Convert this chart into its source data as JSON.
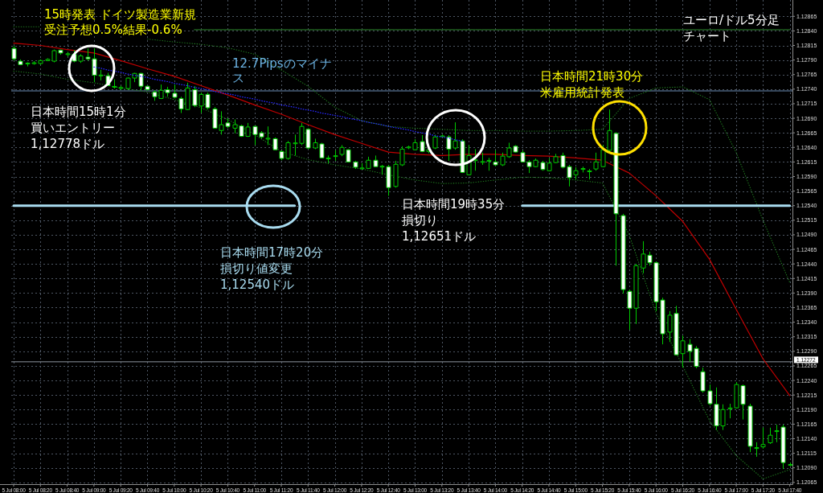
{
  "chart_data": {
    "type": "candlestick",
    "title": "ユーロ/ドル5分足チャート",
    "categories": [
      "5 Jul 08:00",
      null,
      null,
      null,
      "5 Jul 08:20",
      null,
      null,
      null,
      "5 Jul 08:40",
      null,
      null,
      null,
      "5 Jul 09:00",
      null,
      null,
      null,
      "5 Jul 09:20",
      null,
      null,
      null,
      "5 Jul 09:40",
      null,
      null,
      null,
      "5 Jul 10:00",
      null,
      null,
      null,
      "5 Jul 10:20",
      null,
      null,
      null,
      "5 Jul 10:40",
      null,
      null,
      null,
      "5 Jul 11:00",
      null,
      null,
      null,
      "5 Jul 11:20",
      null,
      null,
      null,
      "5 Jul 11:40",
      null,
      null,
      null,
      "5 Jul 12:00",
      null,
      null,
      null,
      "5 Jul 12:20",
      null,
      null,
      null,
      "5 Jul 12:40",
      null,
      null,
      null,
      "5 Jul 13:00",
      null,
      null,
      null,
      "5 Jul 13:20",
      null,
      null,
      null,
      "5 Jul 13:40",
      null,
      null,
      null,
      "5 Jul 14:00",
      null,
      null,
      null,
      "5 Jul 14:20",
      null,
      null,
      null,
      "5 Jul 14:40",
      null,
      null,
      null,
      "5 Jul 15:00",
      null,
      null,
      null,
      "5 Jul 15:20",
      null,
      null,
      null,
      "5 Jul 15:40",
      null,
      null,
      null,
      "5 Jul 16:00",
      null,
      null,
      null,
      "5 Jul 16:20",
      null,
      null,
      null,
      "5 Jul 16:40",
      null,
      null,
      null,
      "5 Jul 17:00",
      null,
      null,
      null,
      "5 Jul 17:20",
      null,
      null,
      null,
      "5 Jul 17:40"
    ],
    "ohlc": [
      [
        1.1281,
        1.12814,
        1.12789,
        1.12792
      ],
      [
        1.12788,
        1.12791,
        1.12781,
        1.12782
      ],
      [
        1.12784,
        1.12786,
        1.12779,
        1.12784
      ],
      [
        1.12784,
        1.12788,
        1.12782,
        1.12785
      ],
      [
        1.12784,
        1.12791,
        1.12782,
        1.12789
      ],
      [
        1.12789,
        1.12793,
        1.12788,
        1.12791
      ],
      [
        1.12788,
        1.12808,
        1.12786,
        1.12806
      ],
      [
        1.12807,
        1.12808,
        1.12799,
        1.12802
      ],
      [
        1.128,
        1.12804,
        1.12796,
        1.128
      ],
      [
        1.128,
        1.12807,
        1.12786,
        1.12788
      ],
      [
        1.12788,
        1.128,
        1.12785,
        1.12797
      ],
      [
        1.12795,
        1.1281,
        1.12789,
        1.12792
      ],
      [
        1.12792,
        1.1281,
        1.12752,
        1.12764
      ],
      [
        1.12763,
        1.12773,
        1.12755,
        1.12764
      ],
      [
        1.12763,
        1.12768,
        1.12745,
        1.12746
      ],
      [
        1.12744,
        1.12757,
        1.12741,
        1.12744
      ],
      [
        1.12742,
        1.12746,
        1.12739,
        1.12742
      ],
      [
        1.12741,
        1.1276,
        1.12739,
        1.12759
      ],
      [
        1.12759,
        1.12768,
        1.12752,
        1.12767
      ],
      [
        1.12767,
        1.12768,
        1.12738,
        1.12745
      ],
      [
        1.12745,
        1.12746,
        1.12738,
        1.12739
      ],
      [
        1.12735,
        1.12738,
        1.1272,
        1.12727
      ],
      [
        1.12724,
        1.12748,
        1.12723,
        1.12738
      ],
      [
        1.12739,
        1.12744,
        1.12727,
        1.12734
      ],
      [
        1.12733,
        1.12748,
        1.12724,
        1.12726
      ],
      [
        1.12724,
        1.12727,
        1.12699,
        1.12706
      ],
      [
        1.12705,
        1.12751,
        1.12704,
        1.12742
      ],
      [
        1.12739,
        1.12745,
        1.12709,
        1.12712
      ],
      [
        1.12711,
        1.12734,
        1.12699,
        1.12731
      ],
      [
        1.12731,
        1.12734,
        1.12705,
        1.12708
      ],
      [
        1.12706,
        1.12709,
        1.12672,
        1.12673
      ],
      [
        1.12669,
        1.12702,
        1.12662,
        1.12679
      ],
      [
        1.12682,
        1.1269,
        1.12673,
        1.12676
      ],
      [
        1.12673,
        1.12688,
        1.12664,
        1.12679
      ],
      [
        1.12677,
        1.12679,
        1.12658,
        1.12659
      ],
      [
        1.12659,
        1.12682,
        1.12658,
        1.12675
      ],
      [
        1.12676,
        1.12677,
        1.12644,
        1.12662
      ],
      [
        1.12665,
        1.12668,
        1.12655,
        1.12658
      ],
      [
        1.12655,
        1.12676,
        1.12644,
        1.12655
      ],
      [
        1.12655,
        1.12657,
        1.12635,
        1.12636
      ],
      [
        1.12633,
        1.12635,
        1.12618,
        1.12621
      ],
      [
        1.12621,
        1.12651,
        1.12619,
        1.12648
      ],
      [
        1.12647,
        1.12662,
        1.12626,
        1.12647
      ],
      [
        1.12647,
        1.12682,
        1.12644,
        1.12676
      ],
      [
        1.12671,
        1.12673,
        1.12637,
        1.12639
      ],
      [
        1.12639,
        1.12655,
        1.12637,
        1.12648
      ],
      [
        1.12646,
        1.12648,
        1.12621,
        1.12622
      ],
      [
        1.12621,
        1.12626,
        1.12613,
        1.12621
      ],
      [
        1.12625,
        1.12635,
        1.12617,
        1.12625
      ],
      [
        1.12628,
        1.12644,
        1.12625,
        1.1264
      ],
      [
        1.12636,
        1.12637,
        1.12614,
        1.12615
      ],
      [
        1.12615,
        1.12617,
        1.12603,
        1.12606
      ],
      [
        1.12604,
        1.12613,
        1.12602,
        1.12604
      ],
      [
        1.12604,
        1.12624,
        1.12603,
        1.12618
      ],
      [
        1.12618,
        1.12626,
        1.12606,
        1.12607
      ],
      [
        1.12607,
        1.1261,
        1.12593,
        1.12607
      ],
      [
        1.12607,
        1.1261,
        1.12557,
        1.12571
      ],
      [
        1.12573,
        1.12617,
        1.12571,
        1.12611
      ],
      [
        1.1261,
        1.12642,
        1.12608,
        1.12637
      ],
      [
        1.1264,
        1.12643,
        1.12637,
        1.1264
      ],
      [
        1.12636,
        1.12654,
        1.12635,
        1.12648
      ],
      [
        1.1265,
        1.12661,
        1.12632,
        1.12633
      ],
      [
        1.12633,
        1.12637,
        1.1263,
        1.12636
      ],
      [
        1.12639,
        1.12662,
        1.12637,
        1.12658
      ],
      [
        1.12659,
        1.12662,
        1.12657,
        1.12659
      ],
      [
        1.12658,
        1.12661,
        1.12617,
        1.12637
      ],
      [
        1.12639,
        1.12683,
        1.12636,
        1.12651
      ],
      [
        1.12651,
        1.12654,
        1.12596,
        1.12597
      ],
      [
        1.12593,
        1.12644,
        1.12592,
        1.12626
      ],
      [
        1.12618,
        1.12637,
        1.126,
        1.12618
      ],
      [
        1.12615,
        1.12631,
        1.1261,
        1.12615
      ],
      [
        1.12617,
        1.12622,
        1.126,
        1.12617
      ],
      [
        1.12615,
        1.12635,
        1.12608,
        1.1261
      ],
      [
        1.1261,
        1.12631,
        1.12608,
        1.12625
      ],
      [
        1.12624,
        1.12648,
        1.12622,
        1.12639
      ],
      [
        1.12642,
        1.12644,
        1.12631,
        1.12632
      ],
      [
        1.12631,
        1.12635,
        1.12614,
        1.12615
      ],
      [
        1.12615,
        1.12618,
        1.12596,
        1.12607
      ],
      [
        1.12607,
        1.12621,
        1.12606,
        1.12618
      ],
      [
        1.12614,
        1.12617,
        1.126,
        1.12602
      ],
      [
        1.126,
        1.12621,
        1.12599,
        1.12613
      ],
      [
        1.12614,
        1.12629,
        1.12613,
        1.12624
      ],
      [
        1.12626,
        1.12631,
        1.12604,
        1.12606
      ],
      [
        1.12607,
        1.1261,
        1.12573,
        1.12588
      ],
      [
        1.12593,
        1.12606,
        1.12585,
        1.126
      ],
      [
        1.12603,
        1.12607,
        1.12597,
        1.12603
      ],
      [
        1.12599,
        1.12603,
        1.12585,
        1.12599
      ],
      [
        1.12603,
        1.12631,
        1.126,
        1.12615
      ],
      [
        1.12607,
        1.12644,
        1.12606,
        1.12636
      ],
      [
        1.12635,
        1.12705,
        1.12633,
        1.12669
      ],
      [
        1.12664,
        1.12666,
        1.12437,
        1.12526
      ],
      [
        1.12523,
        1.12526,
        1.12389,
        1.12396
      ],
      [
        1.12393,
        1.12396,
        1.12327,
        1.12364
      ],
      [
        1.12364,
        1.1244,
        1.12337,
        1.12437
      ],
      [
        1.12433,
        1.12479,
        1.12424,
        1.12457
      ],
      [
        1.12455,
        1.12461,
        1.12437,
        1.12442
      ],
      [
        1.12442,
        1.12444,
        1.12359,
        1.12375
      ],
      [
        1.12378,
        1.12382,
        1.12302,
        1.1232
      ],
      [
        1.12323,
        1.12359,
        1.12306,
        1.12352
      ],
      [
        1.12355,
        1.12368,
        1.12283,
        1.12284
      ],
      [
        1.12286,
        1.12317,
        1.12262,
        1.12308
      ],
      [
        1.12302,
        1.12311,
        1.12272,
        1.1229
      ],
      [
        1.12295,
        1.12299,
        1.12261,
        1.12264
      ],
      [
        1.12255,
        1.12262,
        1.12219,
        1.12222
      ],
      [
        1.12222,
        1.12233,
        1.12197,
        1.122
      ],
      [
        1.12199,
        1.12228,
        1.12155,
        1.12162
      ],
      [
        1.12162,
        1.12199,
        1.12155,
        1.1219
      ],
      [
        1.12192,
        1.122,
        1.12175,
        1.12192
      ],
      [
        1.12193,
        1.12237,
        1.12192,
        1.12233
      ],
      [
        1.12231,
        1.12233,
        1.12173,
        1.12199
      ],
      [
        1.12196,
        1.122,
        1.12117,
        1.12127
      ],
      [
        1.12124,
        1.12134,
        1.12109,
        1.12124
      ],
      [
        1.12126,
        1.12159,
        1.12123,
        1.1213
      ],
      [
        1.12133,
        1.12159,
        1.12131,
        1.12146
      ],
      [
        1.12153,
        1.12164,
        1.12134,
        1.12153
      ],
      [
        1.1216,
        1.12164,
        1.12088,
        1.12099
      ],
      [
        1.12095,
        1.12099,
        1.12093,
        1.12095
      ]
    ],
    "color": "#00c800",
    "colors": [
      "#ffffff",
      "#ffffff",
      "#000000",
      "#000000",
      "#000000",
      "#000000",
      "#000000",
      "#ffffff",
      "#000000",
      "#ffffff",
      "#000000",
      "#ffffff",
      "#ffffff",
      "#000000",
      "#ffffff",
      "#000000",
      "#000000",
      "#000000",
      "#000000",
      "#ffffff",
      "#ffffff",
      "#ffffff",
      "#000000",
      "#ffffff",
      "#ffffff",
      "#ffffff",
      "#000000",
      "#ffffff",
      "#000000",
      "#ffffff",
      "#ffffff",
      "#000000",
      "#ffffff",
      "#000000",
      "#ffffff",
      "#000000",
      "#ffffff",
      "#ffffff",
      "#000000",
      "#ffffff",
      "#ffffff",
      "#000000",
      "#000000",
      "#000000",
      "#ffffff",
      "#000000",
      "#ffffff",
      "#000000",
      "#000000",
      "#000000",
      "#ffffff",
      "#ffffff",
      "#000000",
      "#000000",
      "#ffffff",
      "#000000",
      "#ffffff",
      "#000000",
      "#000000",
      "#000000",
      "#000000",
      "#ffffff",
      "#000000",
      "#000000",
      "#000000",
      "#ffffff",
      "#000000",
      "#ffffff",
      "#000000",
      "#000000",
      "#000000",
      "#000000",
      "#ffffff",
      "#000000",
      "#000000",
      "#ffffff",
      "#ffffff",
      "#ffffff",
      "#000000",
      "#ffffff",
      "#000000",
      "#000000",
      "#ffffff",
      "#ffffff",
      "#000000",
      "#000000",
      "#000000",
      "#000000",
      "#000000",
      "#000000",
      "#ffffff",
      "#ffffff",
      "#ffffff",
      "#000000",
      "#000000",
      "#ffffff",
      "#ffffff",
      "#ffffff",
      "#000000",
      "#ffffff",
      "#000000",
      "#ffffff",
      "#ffffff",
      "#ffffff",
      "#ffffff",
      "#ffffff",
      "#000000",
      "#000000",
      "#000000",
      "#ffffff",
      "#ffffff",
      "#000000",
      "#000000",
      "#000000",
      "#000000",
      "#ffffff",
      "#000000"
    ],
    "series": [
      {
        "type": "line",
        "color": "#c00000",
        "line_style": "solid",
        "x": [
          "5 Jul 08:00",
          "5 Jul 08:20",
          "5 Jul 08:40",
          "5 Jul 09:00",
          "5 Jul 09:20",
          "5 Jul 09:40",
          "5 Jul 10:00",
          "5 Jul 10:20",
          "5 Jul 10:40",
          "5 Jul 11:00",
          "5 Jul 11:20",
          "5 Jul 11:40",
          "5 Jul 12:00",
          "5 Jul 12:20",
          "5 Jul 12:40",
          "5 Jul 13:00",
          "5 Jul 13:20",
          "5 Jul 13:40",
          "5 Jul 14:00",
          "5 Jul 14:20",
          "5 Jul 14:40",
          "5 Jul 15:00",
          "5 Jul 15:20",
          "5 Jul 15:40",
          "5 Jul 16:00",
          "5 Jul 16:20",
          "5 Jul 16:40",
          "5 Jul 17:00",
          "5 Jul 17:20",
          "5 Jul 17:40"
        ],
        "values": [
          1.12819,
          1.12815,
          1.12808,
          1.12802,
          1.12789,
          1.12775,
          1.12762,
          1.12746,
          1.1273,
          1.12713,
          1.12697,
          1.12679,
          1.12662,
          1.12647,
          1.12632,
          1.12628,
          1.12626,
          1.12628,
          1.12628,
          1.12626,
          1.12625,
          1.12622,
          1.12618,
          1.12596,
          1.12557,
          1.12513,
          1.12448,
          1.12362,
          1.12277,
          1.12214
        ]
      },
      {
        "type": "line",
        "color": "#2828ff",
        "line_style": "dotted",
        "values": [
          null,
          null,
          null,
          null,
          null,
          null,
          null,
          null,
          null,
          null,
          null,
          null,
          1.12778,
          1.12776,
          1.12773,
          1.12771,
          1.12769,
          1.12766,
          1.12764,
          1.12762,
          1.1276,
          1.12757,
          1.12755,
          1.12753,
          1.1275,
          1.12748,
          1.12746,
          1.12743,
          1.12741,
          1.12739,
          1.12736,
          1.12734,
          1.12732,
          1.1273,
          1.12727,
          1.12725,
          1.12723,
          1.1272,
          1.12718,
          1.12716,
          1.12713,
          1.12711,
          1.12709,
          1.12706,
          1.12704,
          1.12702,
          1.12699,
          1.12697,
          1.12695,
          1.12693,
          1.1269,
          1.12688,
          1.12686,
          1.12683,
          1.12681,
          1.12679,
          1.12676,
          1.12674,
          1.12672,
          1.1267,
          1.12667,
          1.12665,
          1.12663,
          1.1266,
          1.12658,
          1.12656,
          1.12653,
          1.12651,
          null,
          null,
          null,
          null,
          null,
          null,
          null,
          null,
          null,
          null,
          null,
          null,
          null,
          null,
          null,
          null,
          null,
          null,
          null,
          null,
          null,
          null,
          null,
          null,
          null,
          null,
          null,
          null,
          null,
          null,
          null,
          null,
          null,
          null,
          null,
          null,
          null,
          null,
          null,
          null,
          null,
          null,
          null,
          null,
          null,
          null,
          null,
          null,
          null
        ]
      },
      {
        "type": "line",
        "color": "#1f7a1f",
        "line_style": "dotted",
        "x": [
          "5 Jul 08:00",
          "5 Jul 08:20",
          "5 Jul 08:40",
          "5 Jul 09:00",
          "5 Jul 09:20",
          "5 Jul 09:40",
          "5 Jul 10:00",
          "5 Jul 10:20",
          "5 Jul 10:40",
          "5 Jul 11:00",
          "5 Jul 11:20",
          "5 Jul 11:40",
          "5 Jul 12:00",
          "5 Jul 12:20",
          "5 Jul 12:40",
          "5 Jul 13:00",
          "5 Jul 13:20",
          "5 Jul 13:40",
          "5 Jul 14:00",
          "5 Jul 14:20",
          "5 Jul 14:40",
          "5 Jul 15:00",
          "5 Jul 15:20",
          "5 Jul 15:40",
          "5 Jul 16:00",
          "5 Jul 16:20",
          "5 Jul 16:40",
          "5 Jul 17:00",
          "5 Jul 17:20",
          "5 Jul 17:40"
        ],
        "values": [
          1.12847,
          1.12847,
          null,
          null,
          null,
          1.12826,
          1.12821,
          1.12817,
          1.12811,
          1.128,
          1.12773,
          1.12745,
          1.12709,
          1.12686,
          1.12676,
          1.12673,
          1.12671,
          1.12669,
          1.12669,
          1.12668,
          1.12668,
          1.12669,
          1.12671,
          1.12724,
          1.12742,
          1.12744,
          1.12722,
          1.12631,
          1.12515,
          1.12408
        ]
      },
      {
        "type": "line",
        "color": "#1f7a1f",
        "line_style": "dotted",
        "x": [
          "5 Jul 08:00",
          "5 Jul 08:20",
          "5 Jul 08:40",
          "5 Jul 09:00",
          "5 Jul 09:20",
          "5 Jul 09:40",
          "5 Jul 10:00",
          "5 Jul 10:20",
          "5 Jul 10:40",
          "5 Jul 11:00",
          "5 Jul 11:20",
          "5 Jul 11:40",
          "5 Jul 12:00",
          "5 Jul 12:20",
          "5 Jul 12:40",
          "5 Jul 13:00",
          "5 Jul 13:20",
          "5 Jul 13:40",
          "5 Jul 14:00",
          "5 Jul 14:20",
          "5 Jul 14:40",
          "5 Jul 15:00",
          "5 Jul 15:20",
          "5 Jul 15:40",
          "5 Jul 16:00",
          "5 Jul 16:20",
          "5 Jul 16:40",
          "5 Jul 17:00",
          "5 Jul 17:20",
          "5 Jul 17:40"
        ],
        "values": [
          1.12771,
          1.12766,
          1.12757,
          1.12751,
          1.12742,
          1.12735,
          1.12722,
          1.12708,
          1.12688,
          1.12662,
          1.12633,
          1.12619,
          1.1261,
          1.12603,
          1.12593,
          1.12584,
          1.12578,
          1.12579,
          1.12584,
          1.12589,
          1.12588,
          1.12584,
          1.12579,
          1.1249,
          1.12356,
          1.12265,
          1.12171,
          1.12111,
          1.12071,
          1.12087
        ]
      },
      {
        "type": "line",
        "color": "#a9dcf0",
        "line_style": "solid",
        "values": [
          1.1254,
          1.1254,
          1.1254,
          1.1254,
          1.1254,
          1.1254,
          1.1254,
          1.1254,
          1.1254,
          1.1254,
          1.1254,
          1.1254,
          1.1254,
          1.1254,
          1.1254,
          1.1254,
          1.1254,
          1.1254,
          1.1254,
          1.1254,
          1.1254,
          1.1254,
          1.1254,
          1.1254,
          1.1254,
          1.1254,
          1.1254,
          1.1254,
          1.1254,
          1.1254,
          1.1254,
          1.1254,
          1.1254,
          1.1254,
          1.1254,
          1.1254,
          1.1254,
          1.1254,
          1.1254,
          1.1254,
          1.1254,
          1.1254,
          1.1254,
          null,
          null,
          null,
          null,
          null,
          null,
          null,
          null,
          null,
          null,
          null,
          null,
          null,
          null,
          null,
          null,
          null,
          null,
          null,
          null,
          null,
          null,
          null,
          null,
          null,
          null,
          null,
          null,
          null,
          null,
          null,
          null,
          null,
          1.1254,
          1.1254,
          1.1254,
          1.1254,
          1.1254,
          1.1254,
          1.1254,
          1.1254,
          1.1254,
          1.1254,
          1.1254,
          1.1254,
          1.1254,
          1.1254,
          1.1254,
          1.1254,
          1.1254,
          1.1254,
          1.1254,
          1.1254,
          1.1254,
          1.1254,
          1.1254,
          1.1254,
          1.1254,
          1.1254,
          1.1254,
          1.1254,
          1.1254,
          1.1254,
          1.1254,
          1.1254,
          1.1254,
          1.1254,
          1.1254,
          1.1254,
          1.1254,
          1.1254,
          1.1254,
          1.1254,
          1.1254
        ]
      },
      {
        "type": "line",
        "color": "#2e8b2e",
        "line_style": "solid",
        "values": [
          null,
          null,
          null,
          null,
          null,
          null,
          null,
          null,
          null,
          null,
          null,
          null,
          null,
          null,
          null,
          null,
          null,
          null,
          null,
          null,
          null,
          null,
          null,
          null,
          null,
          null,
          null,
          1.12842,
          1.12842,
          1.12842,
          1.12842,
          1.12842,
          1.12842,
          1.12842,
          1.12842,
          1.12842,
          1.12842,
          1.12842,
          1.12842,
          1.12842,
          1.12842,
          1.12842,
          1.12842,
          1.12842,
          1.12842,
          1.12842,
          1.12842,
          1.12842,
          1.12842,
          1.12842,
          1.12842,
          1.12842,
          1.12842,
          1.12842,
          1.12842,
          1.12842,
          1.12842,
          1.12842,
          1.12842,
          1.12842,
          1.12842,
          1.12842,
          1.12842,
          1.12842,
          1.12842,
          1.12842,
          1.12842,
          1.12842,
          1.12842,
          1.12842,
          1.12842,
          1.12842,
          1.12842,
          1.12842,
          1.12842,
          1.12842,
          1.12842,
          1.12842,
          1.12842,
          1.12842,
          1.12842,
          1.12842,
          1.12842,
          1.12842,
          1.12842,
          1.12842,
          1.12842,
          1.12842,
          1.12842,
          1.12842,
          1.12842,
          1.12842,
          1.12842,
          1.12842,
          1.12842,
          1.12842,
          1.12842,
          1.12842,
          1.12842,
          1.12842,
          1.12842,
          1.12842,
          1.12842,
          1.12842,
          1.12842,
          1.12842,
          1.12842,
          1.12842,
          1.12842,
          1.12842,
          1.12842,
          1.12842,
          1.12842,
          1.12842,
          1.12842,
          1.12842,
          1.12842
        ]
      }
    ],
    "ylim": [
      1.12062,
      1.12893
    ],
    "yticks": [
      1.12065,
      {
        "value": 1.1209,
        "label": "1.12090"
      },
      1.12115,
      {
        "value": 1.1214,
        "label": "1.12140"
      },
      1.12165,
      {
        "value": 1.1219,
        "label": "1.12190"
      },
      1.12215,
      {
        "value": 1.1224,
        "label": "1.12240"
      },
      1.12265,
      {
        "value": 1.1229,
        "label": "1.12290"
      },
      1.12315,
      {
        "value": 1.1234,
        "label": "1.12340"
      },
      1.12365,
      {
        "value": 1.1239,
        "label": "1.12390"
      },
      1.12415,
      {
        "value": 1.1244,
        "label": "1.12440"
      },
      1.12465,
      {
        "value": 1.1249,
        "label": "1.12490"
      },
      1.12515,
      {
        "value": 1.1254,
        "label": "1.12540"
      },
      1.12565,
      {
        "value": 1.1259,
        "label": "1.12590"
      },
      1.12615,
      {
        "value": 1.1264,
        "label": "1.12640"
      },
      1.12665,
      {
        "value": 1.1269,
        "label": "1.12690"
      },
      1.12715,
      {
        "value": 1.1274,
        "label": "1.12740"
      },
      1.12765,
      {
        "value": 1.1279,
        "label": "1.12790"
      },
      1.12815,
      {
        "value": 1.1284,
        "label": "1.12840"
      },
      1.12865
    ],
    "grid": true,
    "ref_lines": [
      {
        "axis": "y",
        "value": 1.12737,
        "color": "#6a8db5"
      },
      {
        "axis": "y",
        "value": 1.12272,
        "label": "1.12272",
        "color": "#8f96a0"
      }
    ],
    "annotations": [
      "15時発表 ドイツ製造業新規受注予想0.5%結果-0.6%",
      "日本時間15時1分",
      "買いエントリー",
      "1,12778ドル",
      "12.7Pipsのマイナス",
      "日本時間17時20分",
      "損切り値変更",
      "1,12540ドル",
      "日本時間19時35分",
      "損切り",
      "1,12651ドル",
      "日本時間21時30分米雇用統計発表"
    ]
  }
}
